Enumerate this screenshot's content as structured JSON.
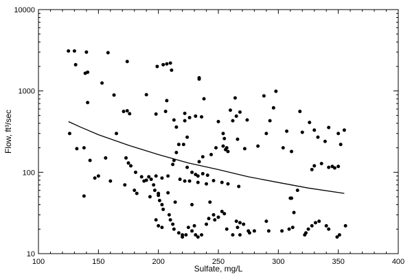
{
  "chart_data": {
    "type": "scatter",
    "xlabel": "Sulfate, mg/L",
    "ylabel": "Flow, ft³/sec",
    "xlim": [
      100,
      400
    ],
    "ylim": [
      10,
      10000
    ],
    "yscale": "log",
    "grid": false,
    "x_ticks": [
      100,
      150,
      200,
      250,
      300,
      350,
      400
    ],
    "x_tick_labels": [
      "100",
      "150",
      "200",
      "250",
      "300",
      "350",
      "400"
    ],
    "y_ticks": [
      10,
      100,
      1000,
      10000
    ],
    "y_tick_labels": [
      "10",
      "100",
      "1000",
      "10000"
    ],
    "point_color": "#000000",
    "line_color": "#000000",
    "points": [
      [
        125,
        3100
      ],
      [
        130,
        3100
      ],
      [
        131,
        2100
      ],
      [
        140,
        3000
      ],
      [
        139,
        1650
      ],
      [
        141,
        1700
      ],
      [
        141,
        720
      ],
      [
        153,
        1250
      ],
      [
        158,
        2950
      ],
      [
        163,
        890
      ],
      [
        174,
        2300
      ],
      [
        190,
        900
      ],
      [
        199,
        2000
      ],
      [
        204,
        2100
      ],
      [
        207,
        2150
      ],
      [
        210,
        2200
      ],
      [
        211,
        1800
      ],
      [
        206,
        560
      ],
      [
        207,
        760
      ],
      [
        198,
        520
      ],
      [
        234,
        1450
      ],
      [
        234,
        1400
      ],
      [
        238,
        800
      ],
      [
        264,
        820
      ],
      [
        288,
        870
      ],
      [
        298,
        990
      ],
      [
        296,
        620
      ],
      [
        222,
        530
      ],
      [
        226,
        470
      ],
      [
        222,
        430
      ],
      [
        213,
        440
      ],
      [
        215,
        360
      ],
      [
        217,
        220
      ],
      [
        221,
        220
      ],
      [
        224,
        270
      ],
      [
        231,
        490
      ],
      [
        236,
        480
      ],
      [
        250,
        420
      ],
      [
        254,
        300
      ],
      [
        255,
        260
      ],
      [
        260,
        580
      ],
      [
        262,
        430
      ],
      [
        265,
        490
      ],
      [
        268,
        550
      ],
      [
        274,
        440
      ],
      [
        290,
        300
      ],
      [
        293,
        430
      ],
      [
        307,
        320
      ],
      [
        318,
        560
      ],
      [
        320,
        310
      ],
      [
        326,
        410
      ],
      [
        330,
        330
      ],
      [
        333,
        270
      ],
      [
        339,
        240
      ],
      [
        342,
        355
      ],
      [
        350,
        300
      ],
      [
        352,
        220
      ],
      [
        355,
        330
      ],
      [
        311,
        180
      ],
      [
        304,
        200
      ],
      [
        283,
        210
      ],
      [
        272,
        195
      ],
      [
        266,
        255
      ],
      [
        254,
        210
      ],
      [
        256,
        190
      ],
      [
        257,
        200
      ],
      [
        258,
        180
      ],
      [
        248,
        200
      ],
      [
        244,
        165
      ],
      [
        237,
        155
      ],
      [
        234,
        135
      ],
      [
        224,
        115
      ],
      [
        215,
        175
      ],
      [
        213,
        140
      ],
      [
        212,
        125
      ],
      [
        228,
        100
      ],
      [
        231,
        94
      ],
      [
        126,
        300
      ],
      [
        132,
        195
      ],
      [
        138,
        200
      ],
      [
        143,
        140
      ],
      [
        147,
        85
      ],
      [
        150,
        90
      ],
      [
        156,
        150
      ],
      [
        160,
        78
      ],
      [
        165,
        300
      ],
      [
        171,
        560
      ],
      [
        174,
        570
      ],
      [
        176,
        525
      ],
      [
        173,
        150
      ],
      [
        175,
        130
      ],
      [
        172,
        70
      ],
      [
        177,
        120
      ],
      [
        180,
        60
      ],
      [
        181,
        100
      ],
      [
        182,
        55
      ],
      [
        186,
        88
      ],
      [
        190,
        80
      ],
      [
        192,
        88
      ],
      [
        194,
        82
      ],
      [
        188,
        78
      ],
      [
        196,
        70
      ],
      [
        197,
        60
      ],
      [
        193,
        50
      ],
      [
        198,
        90
      ],
      [
        200,
        52
      ],
      [
        203,
        85
      ],
      [
        208,
        90
      ],
      [
        200,
        55
      ],
      [
        201,
        45
      ],
      [
        203,
        40
      ],
      [
        204,
        35
      ],
      [
        209,
        30
      ],
      [
        218,
        82
      ],
      [
        222,
        78
      ],
      [
        226,
        78
      ],
      [
        233,
        75
      ],
      [
        240,
        72
      ],
      [
        246,
        79
      ],
      [
        253,
        75
      ],
      [
        258,
        72
      ],
      [
        267,
        67
      ],
      [
        138,
        51
      ],
      [
        198,
        26
      ],
      [
        200,
        22
      ],
      [
        203,
        21
      ],
      [
        210,
        26
      ],
      [
        212,
        23
      ],
      [
        213,
        20
      ],
      [
        217,
        18
      ],
      [
        220,
        17
      ],
      [
        223,
        17
      ],
      [
        225,
        21
      ],
      [
        228,
        19
      ],
      [
        231,
        17
      ],
      [
        233,
        16
      ],
      [
        236,
        17
      ],
      [
        240,
        23
      ],
      [
        242,
        27
      ],
      [
        246,
        30
      ],
      [
        250,
        28
      ],
      [
        253,
        33
      ],
      [
        255,
        31
      ],
      [
        257,
        20
      ],
      [
        262,
        17
      ],
      [
        266,
        21
      ],
      [
        268,
        17
      ],
      [
        268,
        24
      ],
      [
        275,
        19
      ],
      [
        276,
        18
      ],
      [
        292,
        19
      ],
      [
        303,
        19
      ],
      [
        309,
        20
      ],
      [
        312,
        21
      ],
      [
        311,
        48
      ],
      [
        313,
        32
      ],
      [
        322,
        17
      ],
      [
        323,
        18
      ],
      [
        325,
        20
      ],
      [
        328,
        22
      ],
      [
        331,
        24
      ],
      [
        334,
        25
      ],
      [
        328,
        108
      ],
      [
        330,
        120
      ],
      [
        336,
        128
      ],
      [
        342,
        115
      ],
      [
        345,
        118
      ],
      [
        347,
        113
      ],
      [
        350,
        118
      ],
      [
        340,
        22
      ],
      [
        342,
        20
      ],
      [
        349,
        16
      ],
      [
        351,
        17
      ],
      [
        356,
        22
      ],
      [
        310,
        48
      ],
      [
        316,
        60
      ],
      [
        220,
        16
      ],
      [
        237,
        96
      ],
      [
        241,
        92
      ],
      [
        233,
        90
      ],
      [
        265,
        25
      ],
      [
        271,
        23
      ],
      [
        280,
        19
      ],
      [
        290,
        25
      ],
      [
        230,
        22
      ],
      [
        247,
        26
      ],
      [
        208,
        56
      ],
      [
        214,
        43
      ],
      [
        228,
        40
      ],
      [
        243,
        43
      ]
    ],
    "fit_line": [
      [
        125,
        420
      ],
      [
        135,
        360
      ],
      [
        150,
        290
      ],
      [
        175,
        215
      ],
      [
        200,
        165
      ],
      [
        225,
        130
      ],
      [
        250,
        108
      ],
      [
        275,
        88
      ],
      [
        300,
        75
      ],
      [
        325,
        64
      ],
      [
        355,
        55
      ]
    ]
  }
}
